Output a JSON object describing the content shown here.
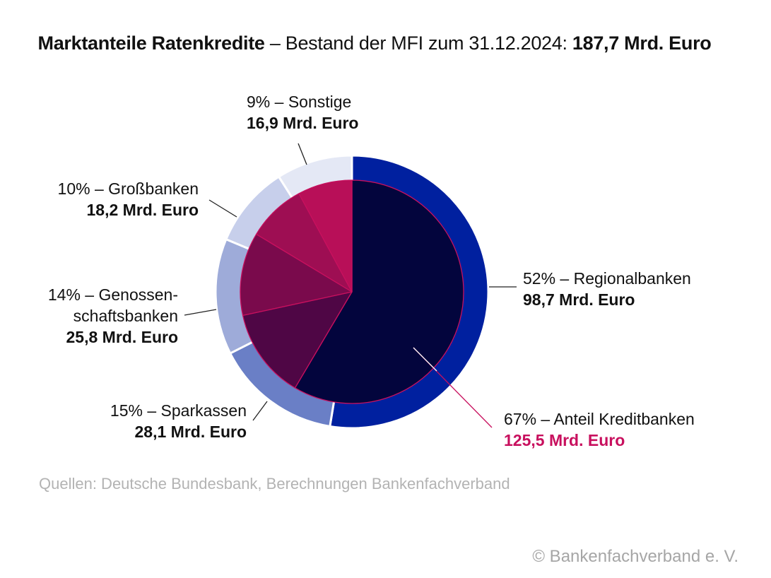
{
  "title": {
    "bold": "Marktanteile Ratenkredite",
    "mid": " – Bestand der MFI zum 31.12.2024: ",
    "total": "187,7 Mrd. Euro"
  },
  "chart_data": {
    "type": "pie",
    "title": "Marktanteile Ratenkredite – Bestand der MFI zum 31.12.2024: 187,7 Mrd. Euro",
    "unit": "Mrd. Euro",
    "outer_ring": [
      {
        "name": "Regionalbanken",
        "percent": 52,
        "value": 98.7,
        "label_pct": "52% – Regionalbanken",
        "label_val": "98,7 Mrd. Euro",
        "color": "#00209f"
      },
      {
        "name": "Sparkassen",
        "percent": 15,
        "value": 28.1,
        "label_pct": "15% – Sparkassen",
        "label_val": "28,1 Mrd. Euro",
        "color": "#6a7fc6"
      },
      {
        "name": "Genossenschaftsbanken",
        "percent": 14,
        "value": 25.8,
        "label_pct": "14% – Genossen-",
        "label_pct2": "schaftsbanken",
        "label_val": "25,8 Mrd. Euro",
        "color": "#9eabd9"
      },
      {
        "name": "Großbanken",
        "percent": 10,
        "value": 18.2,
        "label_pct": "10% – Großbanken",
        "label_val": "18,2 Mrd. Euro",
        "color": "#c7cfeb"
      },
      {
        "name": "Sonstige",
        "percent": 9,
        "value": 16.9,
        "label_pct": "9% – Sonstige",
        "label_val": "16,9 Mrd. Euro",
        "color": "#e4e8f5"
      }
    ],
    "inner_pie": [
      {
        "name": "Anteil Kreditbanken",
        "value": 125.5,
        "label_pct": "67% – Anteil Kreditbanken",
        "label_val": "125,5 Mrd. Euro",
        "color": "#03053d",
        "value_color": "#c8105e"
      },
      {
        "value": 28.1,
        "color": "#4f0645"
      },
      {
        "value": 25.8,
        "color": "#7a0a4c"
      },
      {
        "value": 18.2,
        "color": "#9e0e53"
      },
      {
        "value": 16.9,
        "color": "#b80f58"
      }
    ]
  },
  "source": "Quellen: Deutsche Bundesbank, Berechnungen Bankenfachverband",
  "copyright": "© Bankenfachverband e. V."
}
